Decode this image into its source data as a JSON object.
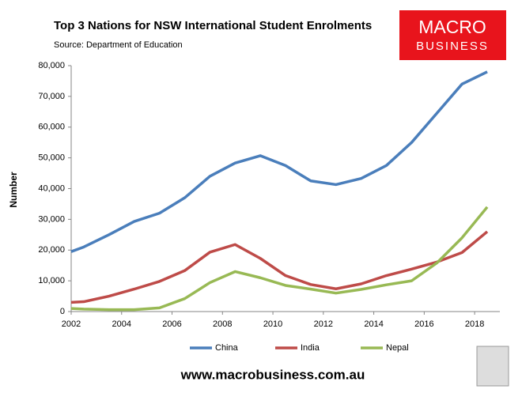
{
  "chart_data": {
    "type": "line",
    "title": "Top 3 Nations for NSW International Student Enrolments",
    "subtitle": "Source: Department of Education",
    "y_label": "Number",
    "logo": [
      "MACRO",
      "BUSINESS"
    ],
    "footer": "www.macrobusiness.com.au",
    "x": [
      2002,
      2002.5,
      2003.5,
      2004.5,
      2005.5,
      2006.5,
      2007.5,
      2008.5,
      2009.5,
      2010.5,
      2011.5,
      2012.5,
      2013.5,
      2014.5,
      2015.5,
      2016.5,
      2017.5,
      2018.5
    ],
    "series": [
      {
        "name": "China",
        "color": "#4a7ebb",
        "values": [
          19500,
          21000,
          25000,
          29300,
          32000,
          37000,
          44000,
          48300,
          50700,
          47500,
          42500,
          41300,
          43300,
          47500,
          55000,
          64500,
          74000,
          78000
        ]
      },
      {
        "name": "India",
        "color": "#be4b48",
        "values": [
          3000,
          3200,
          5000,
          7300,
          9800,
          13300,
          19300,
          21800,
          17300,
          11700,
          8800,
          7400,
          9000,
          11700,
          13800,
          16100,
          19200,
          26000
        ]
      },
      {
        "name": "Nepal",
        "color": "#98b954",
        "values": [
          1000,
          800,
          600,
          600,
          1200,
          4200,
          9400,
          13000,
          11000,
          8500,
          7300,
          6000,
          7200,
          8700,
          10000,
          15800,
          24000,
          34000
        ]
      }
    ],
    "xlim": [
      2002,
      2019
    ],
    "xticks": [
      2002,
      2004,
      2006,
      2008,
      2010,
      2012,
      2014,
      2016,
      2018
    ],
    "ylim": [
      0,
      80000
    ],
    "yticks": [
      0,
      {
        "value": 10000,
        "label": "10,000"
      },
      {
        "value": 20000,
        "label": "20,000"
      },
      {
        "value": 30000,
        "label": "30,000"
      },
      {
        "value": 40000,
        "label": "40,000"
      },
      {
        "value": 50000,
        "label": "50,000"
      },
      {
        "value": 60000,
        "label": "60,000"
      },
      {
        "value": 70000,
        "label": "70,000"
      },
      {
        "value": 80000,
        "label": "80,000"
      }
    ],
    "grid": false,
    "legend": "bottom"
  }
}
